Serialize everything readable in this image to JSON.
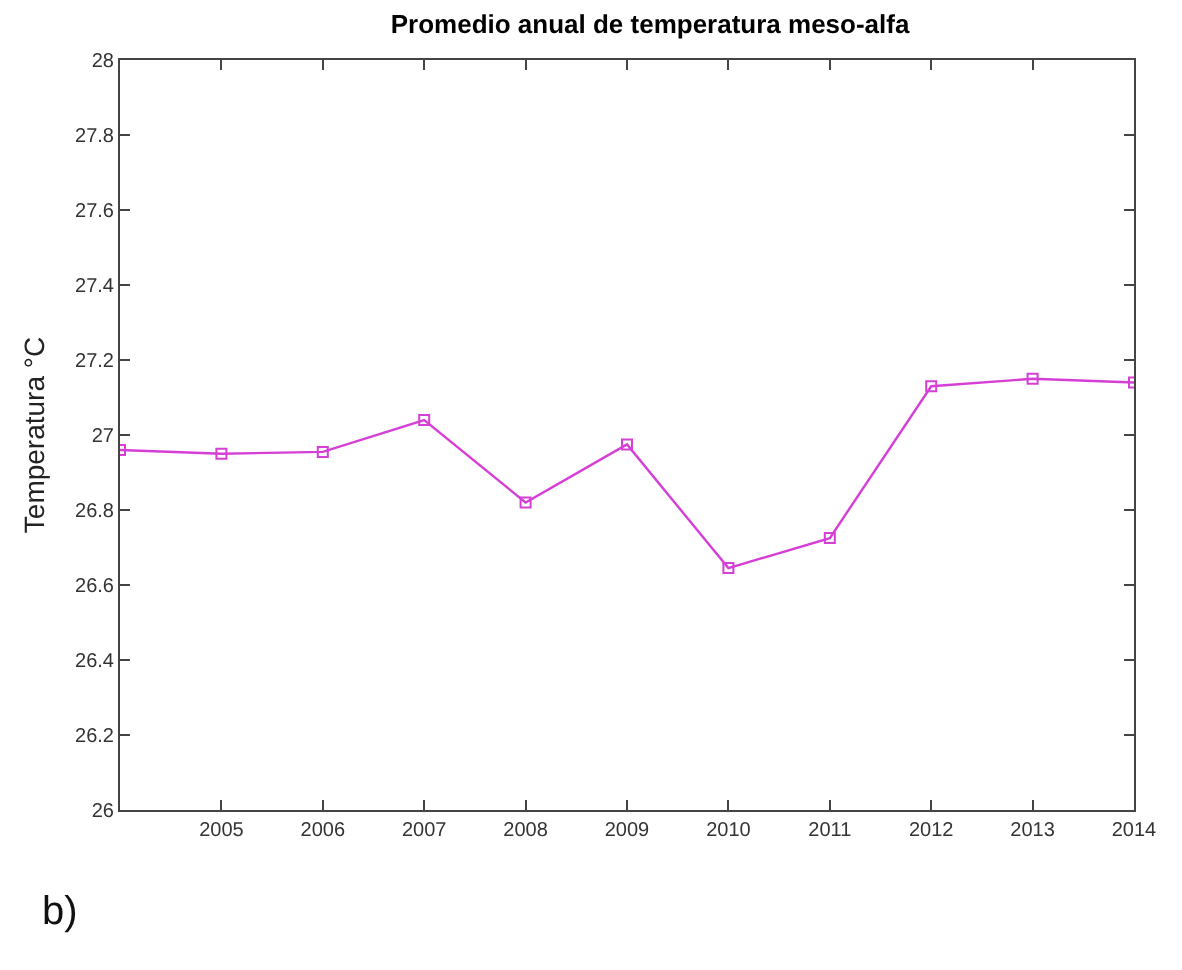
{
  "chart_data": {
    "type": "line",
    "title": "Promedio anual de temperatura meso-alfa",
    "ylabel": "Temperatura °C",
    "x": [
      2004,
      2005,
      2006,
      2007,
      2008,
      2009,
      2010,
      2011,
      2012,
      2013,
      2014
    ],
    "series": [
      {
        "color": "#d63fd6",
        "values": [
          26.96,
          26.95,
          26.955,
          27.04,
          26.82,
          26.975,
          26.645,
          26.725,
          27.13,
          27.15,
          27.14
        ]
      }
    ],
    "xlim": [
      2004,
      2014
    ],
    "xticks": [
      2005,
      2006,
      2007,
      2008,
      2009,
      2010,
      2011,
      2012,
      2013,
      2014
    ],
    "ylim": [
      26,
      28
    ],
    "yticks": [
      26,
      26.2,
      26.4,
      26.6,
      26.8,
      27,
      27.2,
      27.4,
      27.6,
      27.8,
      28
    ],
    "marker": "square",
    "line_style": "solid",
    "annotations": [
      "b)"
    ]
  }
}
